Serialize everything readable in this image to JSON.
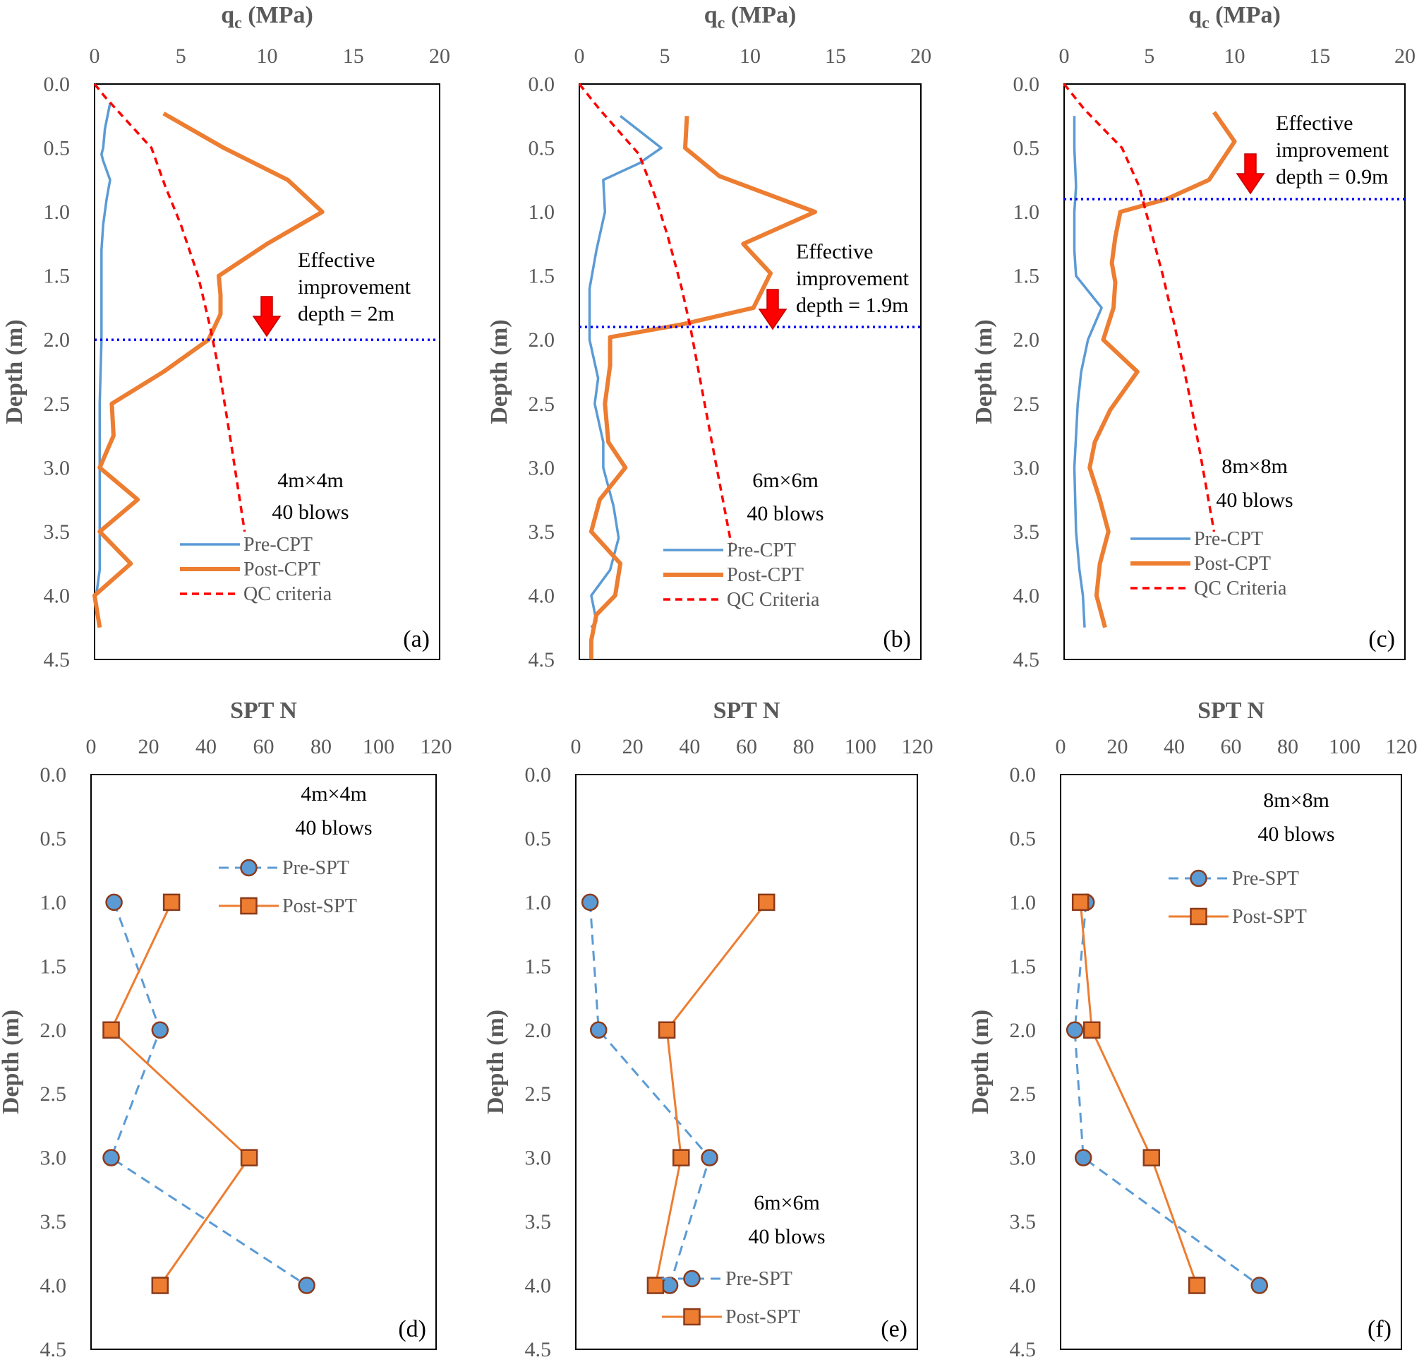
{
  "chart_data": [
    {
      "type": "line",
      "panel": "(a)",
      "xlabel_main": "q",
      "xlabel_sub": "c",
      "xlabel_unit": " (MPa)",
      "ylabel": "Depth (m)",
      "xlim": [
        0,
        20
      ],
      "ylim": [
        0,
        4.5
      ],
      "xticks": [
        "0",
        "5",
        "10",
        "15",
        "20"
      ],
      "yticks": [
        "0.0",
        "0.5",
        "1.0",
        "1.5",
        "2.0",
        "2.5",
        "3.0",
        "3.5",
        "4.0",
        "4.5"
      ],
      "annotation_lines": [
        "4m×4m",
        "40 blows"
      ],
      "improvement_lines": [
        "Effective",
        "improvement",
        "depth = 2m"
      ],
      "improvement_depth": 2.0,
      "legend": [
        "Pre-CPT",
        "Post-CPT",
        "QC criteria"
      ],
      "series": [
        {
          "name": "Pre-CPT",
          "color": "#5B9BD5",
          "points": [
            [
              0.9,
              0.15
            ],
            [
              0.6,
              0.35
            ],
            [
              0.5,
              0.5
            ],
            [
              0.4,
              0.55
            ],
            [
              0.5,
              0.6
            ],
            [
              0.9,
              0.75
            ],
            [
              0.7,
              0.9
            ],
            [
              0.5,
              1.1
            ],
            [
              0.4,
              1.3
            ],
            [
              0.4,
              1.5
            ],
            [
              0.4,
              1.8
            ],
            [
              0.4,
              2.0
            ],
            [
              0.3,
              2.5
            ],
            [
              0.3,
              3.0
            ],
            [
              0.3,
              3.5
            ],
            [
              0.3,
              3.8
            ],
            [
              0.1,
              4.0
            ]
          ]
        },
        {
          "name": "Post-CPT",
          "color": "#ED7D31",
          "points": [
            [
              4.0,
              0.23
            ],
            [
              7.5,
              0.5
            ],
            [
              11.2,
              0.75
            ],
            [
              13.2,
              1.0
            ],
            [
              10.0,
              1.25
            ],
            [
              7.2,
              1.5
            ],
            [
              7.3,
              1.65
            ],
            [
              7.3,
              1.8
            ],
            [
              6.6,
              2.0
            ],
            [
              4.0,
              2.25
            ],
            [
              1.0,
              2.5
            ],
            [
              1.1,
              2.75
            ],
            [
              0.3,
              3.0
            ],
            [
              2.5,
              3.25
            ],
            [
              0.3,
              3.5
            ],
            [
              2.1,
              3.75
            ],
            [
              0.0,
              4.0
            ],
            [
              0.3,
              4.25
            ]
          ]
        },
        {
          "name": "QC criteria",
          "color": "#FF0000",
          "points": [
            [
              0.0,
              0.0
            ],
            [
              0.6,
              0.1
            ],
            [
              3.3,
              0.5
            ],
            [
              4.1,
              0.8
            ],
            [
              5.0,
              1.1
            ],
            [
              6.0,
              1.5
            ],
            [
              6.7,
              1.9
            ],
            [
              7.3,
              2.3
            ],
            [
              7.9,
              2.8
            ],
            [
              8.7,
              3.5
            ]
          ]
        }
      ]
    },
    {
      "type": "line",
      "panel": "(b)",
      "xlabel_main": "q",
      "xlabel_sub": "c",
      "xlabel_unit": " (MPa)",
      "ylabel": "Depth (m)",
      "xlim": [
        0,
        20
      ],
      "ylim": [
        0,
        4.5
      ],
      "xticks": [
        "0",
        "5",
        "10",
        "15",
        "20"
      ],
      "yticks": [
        "0.0",
        "0.5",
        "1.0",
        "1.5",
        "2.0",
        "2.5",
        "3.0",
        "3.5",
        "4.0",
        "4.5"
      ],
      "annotation_lines": [
        "6m×6m",
        "40 blows"
      ],
      "improvement_lines": [
        "Effective",
        "improvement",
        "depth = 1.9m"
      ],
      "improvement_depth": 1.9,
      "legend": [
        "Pre-CPT",
        "Post-CPT",
        "QC Criteria"
      ],
      "series": [
        {
          "name": "Pre-CPT",
          "color": "#5B9BD5",
          "points": [
            [
              2.4,
              0.25
            ],
            [
              4.8,
              0.5
            ],
            [
              3.5,
              0.62
            ],
            [
              1.4,
              0.75
            ],
            [
              1.5,
              1.0
            ],
            [
              1.0,
              1.3
            ],
            [
              0.6,
              1.6
            ],
            [
              0.6,
              2.0
            ],
            [
              1.1,
              2.3
            ],
            [
              0.9,
              2.5
            ],
            [
              1.4,
              2.8
            ],
            [
              1.4,
              3.0
            ],
            [
              2.0,
              3.3
            ],
            [
              2.3,
              3.55
            ],
            [
              1.8,
              3.8
            ],
            [
              0.7,
              4.0
            ],
            [
              1.0,
              4.2
            ],
            [
              0.7,
              4.25
            ]
          ]
        },
        {
          "name": "Post-CPT",
          "color": "#ED7D31",
          "points": [
            [
              6.3,
              0.25
            ],
            [
              6.2,
              0.5
            ],
            [
              8.2,
              0.72
            ],
            [
              13.8,
              1.0
            ],
            [
              9.6,
              1.25
            ],
            [
              11.2,
              1.48
            ],
            [
              10.2,
              1.75
            ],
            [
              6.0,
              1.88
            ],
            [
              1.8,
              1.98
            ],
            [
              1.8,
              2.2
            ],
            [
              1.5,
              2.5
            ],
            [
              1.7,
              2.8
            ],
            [
              2.7,
              3.0
            ],
            [
              1.2,
              3.25
            ],
            [
              0.7,
              3.5
            ],
            [
              2.4,
              3.75
            ],
            [
              2.1,
              4.0
            ],
            [
              1.0,
              4.15
            ],
            [
              0.7,
              4.35
            ],
            [
              0.7,
              4.5
            ]
          ]
        },
        {
          "name": "QC Criteria",
          "color": "#FF0000",
          "points": [
            [
              0.0,
              0.0
            ],
            [
              1.2,
              0.2
            ],
            [
              3.5,
              0.55
            ],
            [
              4.5,
              0.9
            ],
            [
              5.2,
              1.2
            ],
            [
              6.0,
              1.6
            ],
            [
              6.5,
              1.9
            ],
            [
              7.2,
              2.4
            ],
            [
              7.9,
              2.9
            ],
            [
              8.9,
              3.6
            ]
          ]
        }
      ]
    },
    {
      "type": "line",
      "panel": "(c)",
      "xlabel_main": "q",
      "xlabel_sub": "c",
      "xlabel_unit": " (MPa)",
      "ylabel": "Depth (m)",
      "xlim": [
        0,
        20
      ],
      "ylim": [
        0,
        4.5
      ],
      "xticks": [
        "0",
        "5",
        "10",
        "15",
        "20"
      ],
      "yticks": [
        "0.0",
        "0.5",
        "1.0",
        "1.5",
        "2.0",
        "2.5",
        "3.0",
        "3.5",
        "4.0",
        "4.5"
      ],
      "annotation_lines": [
        "8m×8m",
        "40 blows"
      ],
      "improvement_lines": [
        "Effective",
        "improvement",
        "depth = 0.9m"
      ],
      "improvement_depth": 0.9,
      "legend": [
        "Pre-CPT",
        "Post-CPT",
        "QC Criteria"
      ],
      "series": [
        {
          "name": "Pre-CPT",
          "color": "#5B9BD5",
          "points": [
            [
              0.6,
              0.25
            ],
            [
              0.6,
              0.5
            ],
            [
              0.7,
              0.8
            ],
            [
              0.6,
              1.0
            ],
            [
              0.6,
              1.3
            ],
            [
              0.7,
              1.5
            ],
            [
              2.2,
              1.75
            ],
            [
              1.4,
              2.0
            ],
            [
              1.0,
              2.25
            ],
            [
              0.8,
              2.5
            ],
            [
              0.6,
              3.0
            ],
            [
              0.7,
              3.5
            ],
            [
              0.9,
              3.8
            ],
            [
              1.1,
              4.0
            ],
            [
              1.2,
              4.25
            ]
          ]
        },
        {
          "name": "Post-CPT",
          "color": "#ED7D31",
          "points": [
            [
              8.8,
              0.22
            ],
            [
              10.0,
              0.45
            ],
            [
              8.5,
              0.75
            ],
            [
              6.0,
              0.9
            ],
            [
              3.3,
              1.0
            ],
            [
              3.0,
              1.2
            ],
            [
              2.8,
              1.4
            ],
            [
              3.0,
              1.55
            ],
            [
              2.9,
              1.75
            ],
            [
              2.3,
              2.0
            ],
            [
              4.3,
              2.25
            ],
            [
              2.7,
              2.55
            ],
            [
              1.8,
              2.8
            ],
            [
              1.5,
              3.0
            ],
            [
              2.1,
              3.25
            ],
            [
              2.6,
              3.5
            ],
            [
              2.1,
              3.75
            ],
            [
              1.9,
              4.0
            ],
            [
              2.4,
              4.25
            ]
          ]
        },
        {
          "name": "QC Criteria",
          "color": "#FF0000",
          "points": [
            [
              0.0,
              0.0
            ],
            [
              1.2,
              0.2
            ],
            [
              3.4,
              0.5
            ],
            [
              4.4,
              0.8
            ],
            [
              5.0,
              1.1
            ],
            [
              5.8,
              1.5
            ],
            [
              6.5,
              1.9
            ],
            [
              7.3,
              2.4
            ],
            [
              8.0,
              2.9
            ],
            [
              8.8,
              3.5
            ]
          ]
        }
      ]
    },
    {
      "type": "line",
      "panel": "(d)",
      "xlabel": "SPT N",
      "ylabel": "Depth (m)",
      "xlim": [
        0,
        120
      ],
      "ylim": [
        0,
        4.5
      ],
      "xticks": [
        "0",
        "20",
        "40",
        "60",
        "80",
        "100",
        "120"
      ],
      "yticks": [
        "0.0",
        "0.5",
        "1.0",
        "1.5",
        "2.0",
        "2.5",
        "3.0",
        "3.5",
        "4.0",
        "4.5"
      ],
      "annotation_lines": [
        "4m×4m",
        "40 blows"
      ],
      "legend": [
        "Pre-SPT",
        "Post-SPT"
      ],
      "series": [
        {
          "name": "Pre-SPT",
          "color": "#5B9BD5",
          "points": [
            [
              8,
              1.0
            ],
            [
              24,
              2.0
            ],
            [
              7,
              3.0
            ],
            [
              75,
              4.0
            ]
          ]
        },
        {
          "name": "Post-SPT",
          "color": "#ED7D31",
          "points": [
            [
              28,
              1.0
            ],
            [
              7,
              2.0
            ],
            [
              55,
              3.0
            ],
            [
              24,
              4.0
            ]
          ]
        }
      ]
    },
    {
      "type": "line",
      "panel": "(e)",
      "xlabel": "SPT N",
      "ylabel": "Depth (m)",
      "xlim": [
        0,
        120
      ],
      "ylim": [
        0,
        4.5
      ],
      "xticks": [
        "0",
        "20",
        "40",
        "60",
        "80",
        "100",
        "120"
      ],
      "yticks": [
        "0.0",
        "0.5",
        "1.0",
        "1.5",
        "2.0",
        "2.5",
        "3.0",
        "3.5",
        "4.0",
        "4.5"
      ],
      "annotation_lines": [
        "6m×6m",
        "40 blows"
      ],
      "legend": [
        "Pre-SPT",
        "Post-SPT"
      ],
      "series": [
        {
          "name": "Pre-SPT",
          "color": "#5B9BD5",
          "points": [
            [
              5,
              1.0
            ],
            [
              8,
              2.0
            ],
            [
              47,
              3.0
            ],
            [
              33,
              4.0
            ]
          ]
        },
        {
          "name": "Post-SPT",
          "color": "#ED7D31",
          "points": [
            [
              67,
              1.0
            ],
            [
              32,
              2.0
            ],
            [
              37,
              3.0
            ],
            [
              28,
              4.0
            ]
          ]
        }
      ]
    },
    {
      "type": "line",
      "panel": "(f)",
      "xlabel": "SPT N",
      "ylabel": "Depth (m)",
      "xlim": [
        0,
        120
      ],
      "ylim": [
        0,
        4.5
      ],
      "xticks": [
        "0",
        "20",
        "40",
        "60",
        "80",
        "100",
        "120"
      ],
      "yticks": [
        "0.0",
        "0.5",
        "1.0",
        "1.5",
        "2.0",
        "2.5",
        "3.0",
        "3.5",
        "4.0",
        "4.5"
      ],
      "annotation_lines": [
        "8m×8m",
        "40 blows"
      ],
      "legend": [
        "Pre-SPT",
        "Post-SPT"
      ],
      "series": [
        {
          "name": "Pre-SPT",
          "color": "#5B9BD5",
          "points": [
            [
              9,
              1.0
            ],
            [
              5,
              2.0
            ],
            [
              8,
              3.0
            ],
            [
              70,
              4.0
            ]
          ]
        },
        {
          "name": "Post-SPT",
          "color": "#ED7D31",
          "points": [
            [
              7,
              1.0
            ],
            [
              11,
              2.0
            ],
            [
              32,
              3.0
            ],
            [
              48,
              4.0
            ]
          ]
        }
      ]
    }
  ]
}
